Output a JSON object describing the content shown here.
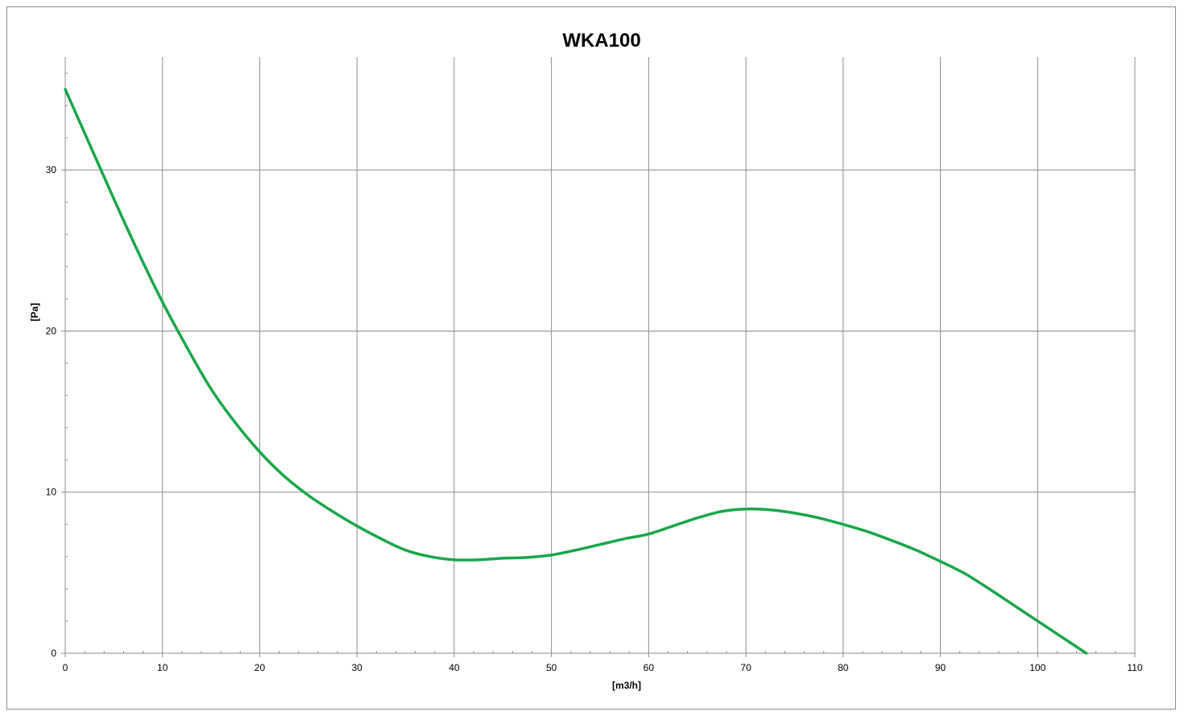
{
  "chart_data": {
    "type": "line",
    "title": "WKA100",
    "xlabel": "[m3/h]",
    "ylabel": "[Pa]",
    "xlim": [
      0,
      110
    ],
    "ylim": [
      0,
      37
    ],
    "xticks": [
      0,
      10,
      20,
      30,
      40,
      50,
      60,
      70,
      80,
      90,
      100,
      110
    ],
    "yticks": [
      0,
      10,
      20,
      30
    ],
    "x_minor_step": 2,
    "y_minor_step": 2,
    "grid": true,
    "legend": "none",
    "series": [
      {
        "color": "#1aa64a",
        "x": [
          0,
          2.5,
          5,
          7.5,
          10,
          12.5,
          15,
          17.5,
          20,
          22.5,
          25,
          27.5,
          30,
          32.5,
          35,
          37.5,
          40,
          42.5,
          45,
          47.5,
          50,
          52.5,
          55,
          57.5,
          60,
          62.5,
          65,
          67.5,
          70,
          72.5,
          75,
          77.5,
          80,
          82.5,
          85,
          87.5,
          90,
          92.5,
          95,
          97.5,
          100,
          102.5,
          105
        ],
        "y": [
          35,
          31.6,
          28.2,
          24.9,
          21.8,
          19.0,
          16.4,
          14.3,
          12.5,
          11.0,
          9.8,
          8.8,
          7.9,
          7.1,
          6.4,
          6.0,
          5.8,
          5.8,
          5.9,
          5.95,
          6.1,
          6.4,
          6.75,
          7.1,
          7.4,
          7.9,
          8.4,
          8.8,
          8.95,
          8.9,
          8.7,
          8.4,
          8.0,
          7.55,
          7.0,
          6.4,
          5.7,
          4.95,
          4.0,
          3.0,
          2.0,
          1.0,
          0
        ]
      }
    ]
  }
}
